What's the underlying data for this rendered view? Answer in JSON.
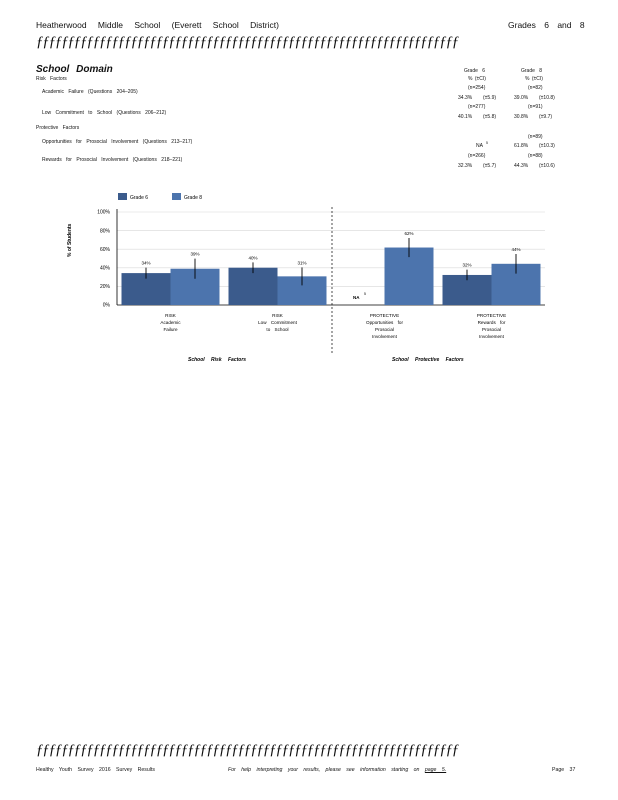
{
  "header": {
    "left": "Heatherwood Middle School (Everett School District)",
    "right": "Grades 6 and 8",
    "rule": "ƒƒƒƒƒƒƒƒƒƒƒƒƒƒƒƒƒƒƒƒƒƒƒƒƒƒƒƒƒƒƒƒƒƒƒƒƒƒƒƒƒƒƒƒƒƒƒƒƒƒƒƒƒƒƒƒƒƒƒƒƒƒƒƒƒƒƒ"
  },
  "section": {
    "title": "School Domain",
    "risk_heading": "Risk Factors",
    "protective_heading": "Protective Factors",
    "col_grade6": "Grade 6",
    "col_grade8": "Grade 8",
    "col_sub6": "% (±CI)",
    "col_sub8": "% (±CI)",
    "rows": [
      {
        "label": "Academic Failure (Questions 204–205)",
        "n6": "(n=254)",
        "n8": "(n=82)",
        "v6": "34.3%",
        "ci6": "(±5.9)",
        "v8": "39.0%",
        "ci8": "(±10.8)"
      },
      {
        "label": "Low Commitment to School (Questions 206–212)",
        "n6": "(n=277)",
        "n8": "(n=91)",
        "v6": "40.1%",
        "ci6": "(±5.8)",
        "v8": "30.8%",
        "ci8": "(±9.7)"
      },
      {
        "label": "Opportunities for Prosocial Involvement (Questions 213–217)",
        "n6": "",
        "n8": "(n=89)",
        "v6": "NA",
        "v6_note": "5",
        "ci6": "",
        "v8": "61.8%",
        "ci8": "(±10.3)"
      },
      {
        "label": "Rewards for Prosocial Involvement (Questions 218–221)",
        "n6": "(n=266)",
        "n8": "(n=88)",
        "v6": "32.3%",
        "ci6": "(±5.7)",
        "v8": "44.3%",
        "ci8": "(±10.6)"
      }
    ]
  },
  "chart": {
    "y_label": "% of Students",
    "legend": [
      "Grade 6",
      "Grade 8"
    ],
    "group_labels": [
      "School Risk Factors",
      "School Protective Factors"
    ],
    "na_label": "NA",
    "na_note": "5"
  },
  "chart_data": {
    "type": "bar",
    "categories": [
      [
        "RISK",
        "Academic",
        "Failure"
      ],
      [
        "RISK",
        "Low Commitment",
        "to School"
      ],
      [
        "PROTECTIVE",
        "Opportunities for",
        "Prosocial",
        "Involvement"
      ],
      [
        "PROTECTIVE",
        "Rewards for",
        "Prosocial",
        "Involvement"
      ]
    ],
    "series": [
      {
        "name": "Grade 6",
        "color": "#3b5b8c",
        "values": [
          34.3,
          40.1,
          null,
          32.3
        ],
        "ci": [
          5.9,
          5.8,
          null,
          5.7
        ],
        "labels": [
          "34%",
          "40%",
          "",
          "32%"
        ]
      },
      {
        "name": "Grade 8",
        "color": "#4c74ad",
        "values": [
          39.0,
          30.8,
          61.8,
          44.3
        ],
        "ci": [
          10.8,
          9.7,
          10.3,
          10.6
        ],
        "labels": [
          "39%",
          "31%",
          "62%",
          "44%"
        ]
      }
    ],
    "ylim": [
      0,
      100
    ],
    "yticks": [
      "0%",
      "20%",
      "40%",
      "60%",
      "80%",
      "100%"
    ],
    "grid": true,
    "legend_position": "top-left"
  },
  "footer": {
    "rule": "ƒƒƒƒƒƒƒƒƒƒƒƒƒƒƒƒƒƒƒƒƒƒƒƒƒƒƒƒƒƒƒƒƒƒƒƒƒƒƒƒƒƒƒƒƒƒƒƒƒƒƒƒƒƒƒƒƒƒƒƒƒƒƒƒƒƒƒ",
    "left": "Healthy Youth Survey 2016 Survey Results",
    "middle": "For help interpreting your results, please see information starting on",
    "page_ref": "page 5.",
    "right": "Page 37"
  }
}
